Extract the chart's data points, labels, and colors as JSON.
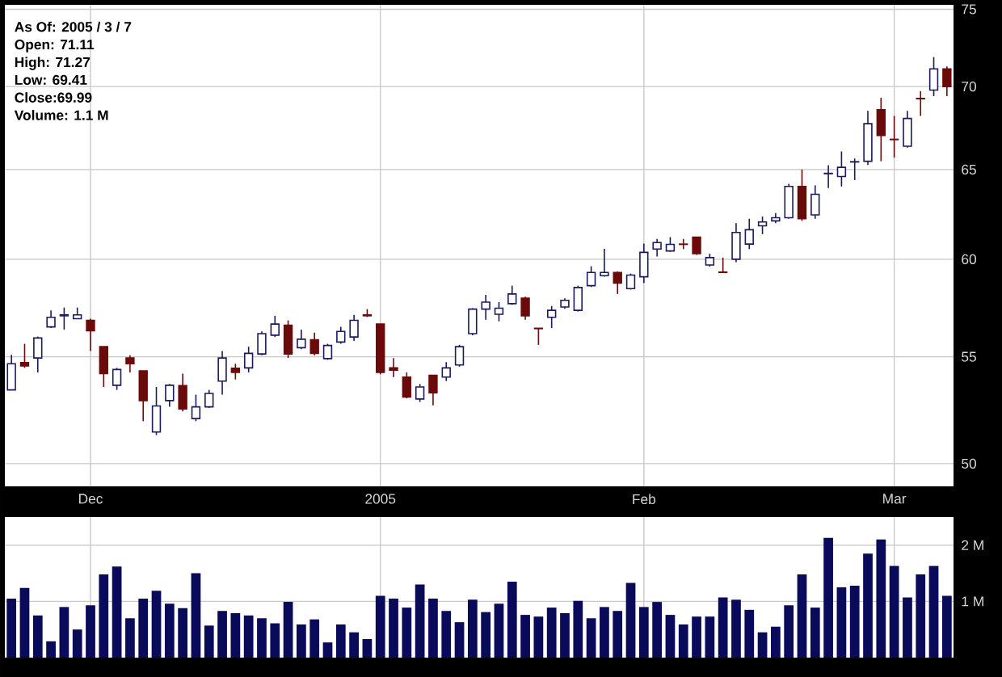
{
  "chart_data": [
    {
      "type": "candlestick",
      "categories": [
        null,
        null,
        null,
        null,
        null,
        null,
        "Dec",
        null,
        null,
        null,
        null,
        null,
        null,
        null,
        null,
        null,
        null,
        null,
        null,
        null,
        null,
        null,
        null,
        null,
        null,
        null,
        null,
        null,
        "2005",
        null,
        null,
        null,
        null,
        null,
        null,
        null,
        null,
        null,
        null,
        null,
        null,
        null,
        null,
        null,
        null,
        null,
        null,
        null,
        "Feb",
        null,
        null,
        null,
        null,
        null,
        null,
        null,
        null,
        null,
        null,
        null,
        null,
        null,
        null,
        null,
        null,
        null,
        null,
        "Mar",
        null,
        null,
        null,
        null
      ],
      "ohlc": [
        [
          53.4,
          55.1,
          53.4,
          54.66
        ],
        [
          54.72,
          55.64,
          54.46,
          54.55
        ],
        [
          54.94,
          56.0,
          54.24,
          55.93
        ],
        [
          56.49,
          57.33,
          56.43,
          56.97
        ],
        [
          57.05,
          57.47,
          56.35,
          57.1
        ],
        [
          56.9,
          57.47,
          56.88,
          57.1
        ],
        [
          56.82,
          56.9,
          55.28,
          56.29
        ],
        [
          55.5,
          55.5,
          53.54,
          54.18
        ],
        [
          53.62,
          54.46,
          53.4,
          54.38
        ],
        [
          54.94,
          55.08,
          54.24,
          54.66
        ],
        [
          54.32,
          54.32,
          51.93,
          52.89
        ],
        [
          51.43,
          53.54,
          51.29,
          52.64
        ],
        [
          52.89,
          53.68,
          52.6,
          53.62
        ],
        [
          53.6,
          54.18,
          52.38,
          52.5
        ],
        [
          52.05,
          53.17,
          51.93,
          52.6
        ],
        [
          52.6,
          53.4,
          52.55,
          53.23
        ],
        [
          53.82,
          55.28,
          53.17,
          54.94
        ],
        [
          54.44,
          54.66,
          53.9,
          54.24
        ],
        [
          54.46,
          55.5,
          54.24,
          55.17
        ],
        [
          55.14,
          56.26,
          55.08,
          56.15
        ],
        [
          56.07,
          57.05,
          55.98,
          56.63
        ],
        [
          56.57,
          56.82,
          54.94,
          55.14
        ],
        [
          55.45,
          56.35,
          55.37,
          55.87
        ],
        [
          55.84,
          56.2,
          55.08,
          55.17
        ],
        [
          54.91,
          55.64,
          54.85,
          55.56
        ],
        [
          55.73,
          56.49,
          55.64,
          56.26
        ],
        [
          55.98,
          57.1,
          55.78,
          56.82
        ],
        [
          57.1,
          57.39,
          56.99,
          57.05
        ],
        [
          56.63,
          56.63,
          54.15,
          54.24
        ],
        [
          54.46,
          54.94,
          54.01,
          54.35
        ],
        [
          54.01,
          54.24,
          53.0,
          53.06
        ],
        [
          52.97,
          53.68,
          52.83,
          53.54
        ],
        [
          54.1,
          54.1,
          52.67,
          53.26
        ],
        [
          54.01,
          54.74,
          53.82,
          54.46
        ],
        [
          54.6,
          55.59,
          54.52,
          55.5
        ],
        [
          56.15,
          57.44,
          56.07,
          57.39
        ],
        [
          57.39,
          58.12,
          56.85,
          57.75
        ],
        [
          57.13,
          57.75,
          56.77,
          57.44
        ],
        [
          57.67,
          58.6,
          57.61,
          58.17
        ],
        [
          57.95,
          58.03,
          56.85,
          57.05
        ],
        [
          56.42,
          56.42,
          55.59,
          56.4
        ],
        [
          56.97,
          57.55,
          56.43,
          57.33
        ],
        [
          57.5,
          57.95,
          57.41,
          57.84
        ],
        [
          57.33,
          58.6,
          57.27,
          58.51
        ],
        [
          58.6,
          59.63,
          58.53,
          59.3
        ],
        [
          59.13,
          60.56,
          59.07,
          59.3
        ],
        [
          59.3,
          59.35,
          58.17,
          58.74
        ],
        [
          58.45,
          59.24,
          58.4,
          59.16
        ],
        [
          59.07,
          60.84,
          58.74,
          60.37
        ],
        [
          60.55,
          61.1,
          60.15,
          60.9
        ],
        [
          60.45,
          61.2,
          60.4,
          60.8
        ],
        [
          60.82,
          61.1,
          60.55,
          60.8
        ],
        [
          61.2,
          61.2,
          60.24,
          60.3
        ],
        [
          59.7,
          60.3,
          59.61,
          60.09
        ],
        [
          59.32,
          60.09,
          59.3,
          59.3
        ],
        [
          60.0,
          61.97,
          59.85,
          61.45
        ],
        [
          60.82,
          62.21,
          60.55,
          61.6
        ],
        [
          61.82,
          62.33,
          61.36,
          62.03
        ],
        [
          62.09,
          62.52,
          61.97,
          62.27
        ],
        [
          62.27,
          64.18,
          62.21,
          64.03
        ],
        [
          64.03,
          65.0,
          62.09,
          62.21
        ],
        [
          62.42,
          64.09,
          62.21,
          63.58
        ],
        [
          64.76,
          65.25,
          63.94,
          64.78
        ],
        [
          64.6,
          66.06,
          64.03,
          65.13
        ],
        [
          65.44,
          65.64,
          64.39,
          65.46
        ],
        [
          65.48,
          68.5,
          65.26,
          67.71
        ],
        [
          68.57,
          69.3,
          65.48,
          67.01
        ],
        [
          66.78,
          68.19,
          65.7,
          66.76
        ],
        [
          66.37,
          68.5,
          66.28,
          68.03
        ],
        [
          69.26,
          69.71,
          68.19,
          69.24
        ],
        [
          69.78,
          71.86,
          69.4,
          71.11
        ],
        [
          71.11,
          71.27,
          69.41,
          69.99
        ]
      ],
      "ylim": [
        49,
        75.3
      ],
      "yticks": [
        50,
        55,
        60,
        65,
        70,
        75
      ],
      "log": true,
      "grid": true,
      "annotations": [
        "As Of: 2005 / 3 / 7",
        "Open: 71.11",
        "High: 71.27",
        "Low: 69.41",
        "Close:69.99",
        "Volume: 1.1 M"
      ]
    },
    {
      "type": "bar",
      "categories": [
        null,
        null,
        null,
        null,
        null,
        null,
        null,
        null,
        null,
        null,
        null,
        null,
        null,
        null,
        null,
        null,
        null,
        null,
        null,
        null,
        null,
        null,
        null,
        null,
        null,
        null,
        null,
        null,
        null,
        null,
        null,
        null,
        null,
        null,
        null,
        null,
        null,
        null,
        null,
        null,
        null,
        null,
        null,
        null,
        null,
        null,
        null,
        null,
        null,
        null,
        null,
        null,
        null,
        null,
        null,
        null,
        null,
        null,
        null,
        null,
        null,
        null,
        null,
        null,
        null,
        null,
        null,
        null,
        null,
        null,
        null,
        null
      ],
      "values": [
        1.05,
        1.24,
        0.75,
        0.29,
        0.9,
        0.5,
        0.93,
        1.48,
        1.62,
        0.7,
        1.05,
        1.19,
        0.96,
        0.88,
        1.5,
        0.57,
        0.83,
        0.79,
        0.75,
        0.7,
        0.61,
        0.99,
        0.59,
        0.68,
        0.27,
        0.59,
        0.45,
        0.33,
        1.1,
        1.05,
        0.89,
        1.3,
        1.05,
        0.83,
        0.63,
        1.03,
        0.81,
        0.96,
        1.35,
        0.76,
        0.73,
        0.89,
        0.79,
        1.01,
        0.7,
        0.9,
        0.83,
        1.33,
        0.9,
        0.99,
        0.76,
        0.59,
        0.73,
        0.73,
        1.07,
        1.03,
        0.85,
        0.45,
        0.55,
        0.93,
        1.48,
        0.89,
        2.13,
        1.25,
        1.28,
        1.85,
        2.1,
        1.63,
        1.07,
        1.48,
        1.63,
        1.1
      ],
      "color": "#0a0a5a",
      "ylim": [
        0,
        2.5
      ],
      "yticks": [
        {
          "value": 1,
          "label": "1 M"
        },
        {
          "value": 2,
          "label": "2 M"
        }
      ],
      "grid": true,
      "tick_labels": "y"
    }
  ]
}
